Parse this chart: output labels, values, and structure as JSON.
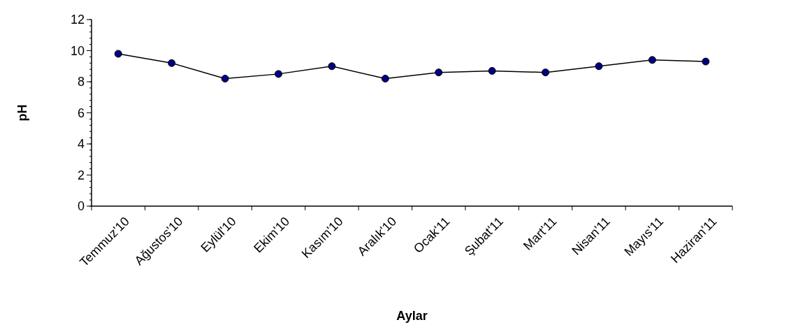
{
  "chart_data": {
    "type": "line",
    "xlabel": "Aylar",
    "ylabel": "pH",
    "categories": [
      "Temmuz'10",
      "Ağustos'10",
      "Eylül'10",
      "Ekim'10",
      "Kasım'10",
      "Aralık'10",
      "Ocak'11",
      "Şubat'11",
      "Mart'11",
      "Nisan'11",
      "Mayıs'11",
      "Haziran'11"
    ],
    "series": [
      {
        "color": "#000080",
        "values": [
          9.8,
          9.2,
          8.2,
          8.5,
          9.0,
          8.2,
          8.6,
          8.7,
          8.6,
          9.0,
          9.4,
          9.3
        ]
      }
    ],
    "ylim": [
      0,
      12
    ],
    "yticks": [
      0,
      2,
      4,
      6,
      8,
      10,
      12
    ],
    "marker": "circle",
    "line_style": "solid"
  }
}
